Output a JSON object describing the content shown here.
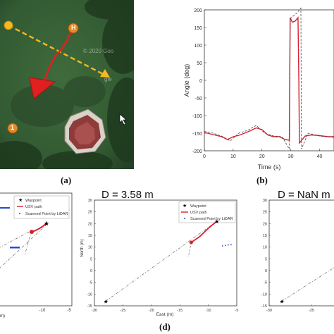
{
  "panel_a": {
    "caption": "(a)",
    "watermark_1": "© 2020 Goo",
    "watermark_2": "gle",
    "marker_h": "H",
    "marker_1": "1"
  },
  "panel_b": {
    "caption": "(b)"
  },
  "panel_d": {
    "caption": "(d)"
  },
  "chart_data": [
    {
      "type": "line",
      "panel": "b",
      "xlabel": "Time (s)",
      "ylabel": "Angle (deg)",
      "xlim": [
        0,
        45
      ],
      "ylim": [
        -200,
        200
      ],
      "xticks": [
        "0",
        "10",
        "20",
        "30",
        "40"
      ],
      "yticks": [
        "200",
        "150",
        "100",
        "50",
        "0",
        "-50",
        "-100",
        "-150",
        "-200"
      ],
      "grid": false,
      "series": [
        {
          "style": "solid",
          "color": "#d62030",
          "x": [
            0,
            2,
            4,
            6,
            8,
            10,
            12,
            14,
            16,
            18,
            20,
            22,
            24,
            26,
            28,
            29.5,
            29.8,
            30.5,
            31.5,
            32.5,
            32.8,
            33,
            35,
            37,
            39,
            41,
            43,
            45
          ],
          "y": [
            -148,
            -152,
            -156,
            -160,
            -168,
            -160,
            -156,
            -150,
            -143,
            -135,
            -140,
            -155,
            -160,
            -160,
            -168,
            -170,
            178,
            165,
            168,
            178,
            0,
            -178,
            -158,
            -155,
            -156,
            -158,
            -160,
            -160
          ]
        },
        {
          "style": "dashed",
          "color": "#444444",
          "x": [
            0,
            3,
            6,
            9,
            12,
            15,
            18,
            21,
            24,
            27,
            29.5,
            29.8,
            32,
            33.5,
            33.7,
            36,
            40,
            45
          ],
          "y": [
            -145,
            -150,
            -158,
            -172,
            -150,
            -142,
            -128,
            -150,
            -158,
            -160,
            -195,
            175,
            190,
            205,
            -195,
            -150,
            -158,
            -162
          ]
        }
      ]
    },
    {
      "type": "scatter",
      "panel": "d-left",
      "xticks": [
        "-10",
        "-5"
      ],
      "xlabel_fragment": "m)",
      "legend": [
        "Waypoint",
        "USV path",
        "Scanned Point by LiDAR"
      ],
      "legend_position": "top-right"
    },
    {
      "type": "scatter",
      "panel": "d-middle",
      "title": "D = 3.58 m",
      "xlabel": "East (m)",
      "ylabel": "North (m)",
      "xlim": [
        -30,
        -5
      ],
      "ylim": [
        -15,
        30
      ],
      "xticks": [
        "-30",
        "-25",
        "-20",
        "-15",
        "-10",
        "-5"
      ],
      "yticks": [
        "30",
        "25",
        "20",
        "15",
        "10",
        "5",
        "0",
        "-5",
        "-10",
        "-15"
      ],
      "legend": [
        "Waypoint",
        "USV path",
        "Scanned Point by LiDAR"
      ],
      "legend_position": "top-right",
      "waypoints": [
        {
          "x": -28,
          "y": -13
        },
        {
          "x": -8.5,
          "y": 21
        }
      ],
      "usv_path": {
        "x": [
          -13,
          -11.5,
          -10,
          -8.5
        ],
        "y": [
          12,
          14.5,
          18,
          21
        ]
      },
      "lidar_points": {
        "x": [
          -7.5,
          -7,
          -6.5,
          -6
        ],
        "y": [
          10.5,
          10.7,
          10.9,
          11
        ]
      }
    },
    {
      "type": "scatter",
      "panel": "d-right",
      "title": "D = NaN m",
      "xlim": [
        -30,
        -22
      ],
      "ylim": [
        -15,
        30
      ],
      "xticks": [
        "-30",
        "-25"
      ],
      "yticks": [
        "30",
        "25",
        "20",
        "15",
        "10",
        "5",
        "0",
        "-5",
        "-10",
        "-15"
      ],
      "waypoints": [
        {
          "x": -28.5,
          "y": -13
        }
      ]
    }
  ]
}
